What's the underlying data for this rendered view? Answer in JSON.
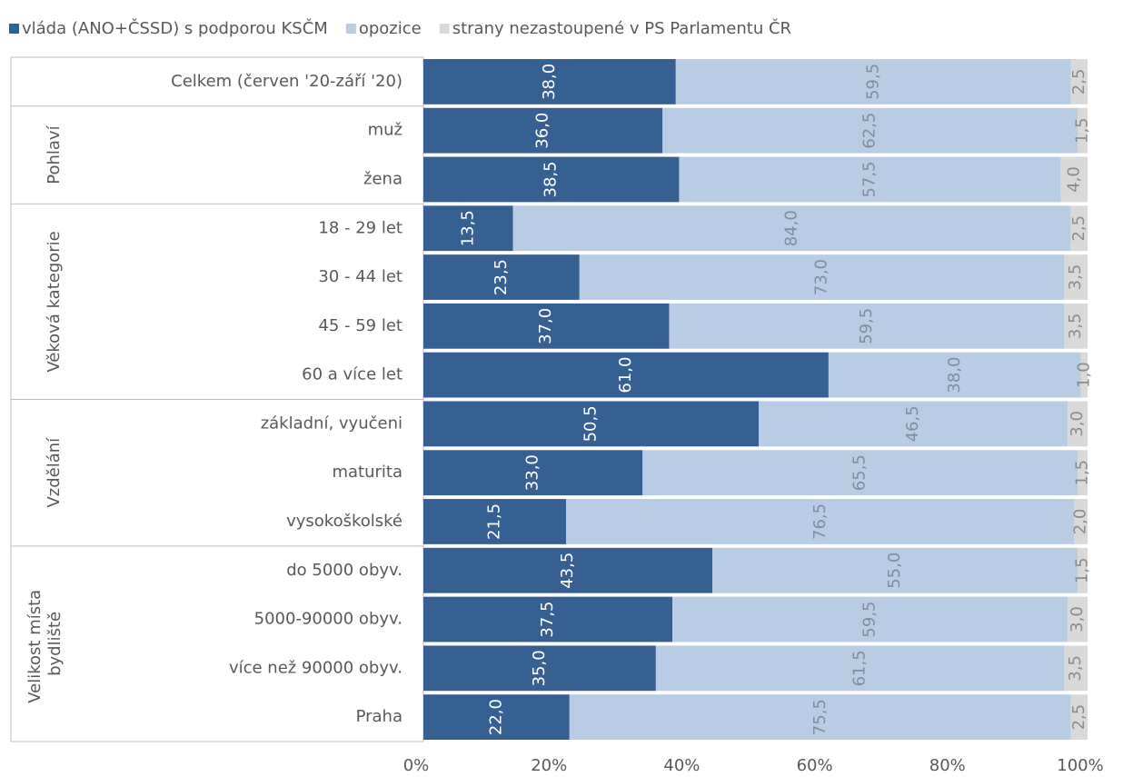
{
  "chart_data": {
    "type": "stacked_bar_horizontal",
    "category_groups": [
      {
        "categories": [
          "Celkem (červen '20-září '20)"
        ]
      },
      {
        "label": "Pohlaví",
        "categories": [
          "muž",
          "žena"
        ]
      },
      {
        "label": "Věková kategorie",
        "categories": [
          "18 - 29 let",
          "30 - 44 let",
          "45 - 59 let",
          "60 a více let"
        ]
      },
      {
        "label": "Vzdělání",
        "categories": [
          "základní, vyučeni",
          "maturita",
          "vysokoškolské"
        ]
      },
      {
        "label": "Velikost místa bydliště",
        "categories": [
          "do 5000 obyv.",
          "5000-90000 obyv.",
          "více než 90000 obyv.",
          "Praha"
        ]
      }
    ],
    "series": [
      {
        "name": "vláda (ANO+ČSSD) s podporou KSČM",
        "color": "#365f92",
        "label_color": "#ffffff",
        "values": [
          38,
          36,
          38.5,
          13.5,
          23.5,
          37,
          61,
          50.5,
          33,
          21.5,
          43.5,
          37.5,
          35,
          22
        ],
        "value_labels": [
          "38,0",
          "36,0",
          "38,5",
          "13,5",
          "23,5",
          "37,0",
          "61,0",
          "50,5",
          "33,0",
          "21,5",
          "43,5",
          "37,5",
          "35,0",
          "22,0"
        ]
      },
      {
        "name": "opozice",
        "color": "#b8cce4",
        "label_color": "#7f8ea3",
        "values": [
          59.5,
          62.5,
          57.5,
          84,
          73,
          59.5,
          38,
          46.5,
          65.5,
          76.5,
          55,
          59.5,
          61.5,
          75.5
        ],
        "value_labels": [
          "59,5",
          "62,5",
          "57,5",
          "84,0",
          "73,0",
          "59,5",
          "38,0",
          "46,5",
          "65,5",
          "76,5",
          "55,0",
          "59,5",
          "61,5",
          "75,5"
        ]
      },
      {
        "name": "strany nezastoupené v PS Parlamentu ČR",
        "color": "#d9d9d9",
        "label_color": "#8c8c8c",
        "values": [
          2.5,
          1.5,
          4,
          2.5,
          3.5,
          3.5,
          1,
          3,
          1.5,
          2,
          1.5,
          3,
          3.5,
          2.5
        ],
        "value_labels": [
          "2,5",
          "1,5",
          "4,0",
          "2,5",
          "3,5",
          "3,5",
          "1,0",
          "3,0",
          "1,5",
          "2,0",
          "1,5",
          "3,0",
          "3,5",
          "2,5"
        ]
      }
    ],
    "xlim": [
      0,
      100
    ],
    "xticks": [
      {
        "value": 0,
        "label": "0%"
      },
      {
        "value": 20,
        "label": "20%"
      },
      {
        "value": 40,
        "label": "40%"
      },
      {
        "value": 60,
        "label": "60%"
      },
      {
        "value": 80,
        "label": "80%"
      },
      {
        "value": 100,
        "label": "100%"
      }
    ],
    "legend": "top"
  }
}
